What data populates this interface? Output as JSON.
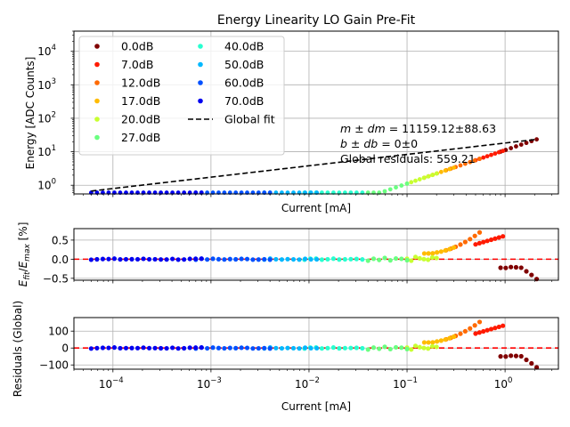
{
  "chart_data": [
    {
      "type": "scatter",
      "panel": "energy",
      "title": "Energy Linearity LO Gain Pre-Fit",
      "xlabel": "Current [mA]",
      "ylabel": "Energy [ADC Counts]",
      "xscale": "log",
      "yscale": "log",
      "xlim": [
        4e-05,
        3.5
      ],
      "ylim": [
        0.55,
        40000
      ],
      "xticks": [
        {
          "value": 0.0001,
          "base": "10",
          "exp": "−4"
        },
        {
          "value": 0.001,
          "base": "10",
          "exp": "−3"
        },
        {
          "value": 0.01,
          "base": "10",
          "exp": "−2"
        },
        {
          "value": 0.1,
          "base": "10",
          "exp": "−1"
        },
        {
          "value": 1,
          "base": "10",
          "exp": "0"
        }
      ],
      "yticks": [
        {
          "value": 1,
          "base": "10",
          "exp": "0"
        },
        {
          "value": 10,
          "base": "10",
          "exp": "1"
        },
        {
          "value": 100,
          "base": "10",
          "exp": "2"
        },
        {
          "value": 1000,
          "base": "10",
          "exp": "3"
        },
        {
          "value": 10000,
          "base": "10",
          "exp": "4"
        }
      ],
      "grid": true,
      "legend_position": "top-left",
      "legend_columns": 2,
      "series": [
        {
          "name": "0.0dB",
          "color": "#800000",
          "x_range": [
            0.9,
            2.1
          ]
        },
        {
          "name": "7.0dB",
          "color": "#ff1a00",
          "x_range": [
            0.5,
            0.95
          ]
        },
        {
          "name": "12.0dB",
          "color": "#ff6a00",
          "x_range": [
            0.25,
            0.55
          ]
        },
        {
          "name": "17.0dB",
          "color": "#ffbb00",
          "x_range": [
            0.15,
            0.3
          ]
        },
        {
          "name": "20.0dB",
          "color": "#c8ff30",
          "x_range": [
            0.1,
            0.2
          ]
        },
        {
          "name": "27.0dB",
          "color": "#6aff80",
          "x_range": [
            0.04,
            0.1
          ]
        },
        {
          "name": "40.0dB",
          "color": "#28ffd0",
          "x_range": [
            0.009,
            0.035
          ]
        },
        {
          "name": "50.0dB",
          "color": "#00b8ff",
          "x_range": [
            0.0035,
            0.012
          ]
        },
        {
          "name": "60.0dB",
          "color": "#0050ff",
          "x_range": [
            0.0007,
            0.004
          ]
        },
        {
          "name": "70.0dB",
          "color": "#0000f0",
          "x_range": [
            6e-05,
            0.0008
          ]
        }
      ],
      "fit": {
        "name": "Global fit",
        "slope": 11159.12,
        "intercept": 0,
        "color": "#000000",
        "style": "dashed"
      },
      "annotations": [
        {
          "math": true,
          "lhs_italic": "m ± dm",
          "rhs": " = 11159.12±88.63"
        },
        {
          "math": true,
          "lhs_italic": "b ± db",
          "rhs": " = 0±0"
        },
        {
          "math": false,
          "text": "Global residuals: 559.21"
        }
      ]
    },
    {
      "type": "scatter",
      "panel": "relative-residual",
      "xlabel": "",
      "ylabel": "(E − E_fit)/E_max [%]",
      "ylabel_display": "(E − Efit)/Emax [%]",
      "xscale": "log",
      "xlim": [
        4e-05,
        3.5
      ],
      "ylim": [
        -0.55,
        0.8
      ],
      "yticks": [
        "−0.5",
        "0.0",
        "0.5"
      ],
      "ytick_values": [
        -0.5,
        0.0,
        0.5
      ],
      "reference_line": {
        "y": 0,
        "color": "#ff0000",
        "style": "dashed"
      },
      "grid": true,
      "trend_notes": "Near 0 below 0.1 mA; 12dB/17dB rise to ~0.75 at 0.55 mA; 7dB rises to ~0.58 at 0.95 mA; 0dB falls to ~-0.5 at 2.1 mA"
    },
    {
      "type": "scatter",
      "panel": "global-residual",
      "xlabel": "Current [mA]",
      "ylabel": "Residuals (Global)",
      "xscale": "log",
      "xlim": [
        4e-05,
        3.5
      ],
      "ylim": [
        -125,
        180
      ],
      "yticks": [
        "−100",
        "0",
        "100"
      ],
      "ytick_values": [
        -100,
        0,
        100
      ],
      "xticks": [
        {
          "value": 0.0001,
          "base": "10",
          "exp": "−4"
        },
        {
          "value": 0.001,
          "base": "10",
          "exp": "−3"
        },
        {
          "value": 0.01,
          "base": "10",
          "exp": "−2"
        },
        {
          "value": 0.1,
          "base": "10",
          "exp": "−1"
        },
        {
          "value": 1,
          "base": "10",
          "exp": "0"
        }
      ],
      "reference_line": {
        "y": 0,
        "color": "#ff0000",
        "style": "dashed"
      },
      "grid": true,
      "trend_notes": "Near 0 below 0.1 mA; 12dB/17dB rise to ~170 at 0.55 mA; 7dB rises to ~130 at 0.95 mA; 0dB falls to ~-115 at 2.1 mA"
    }
  ]
}
